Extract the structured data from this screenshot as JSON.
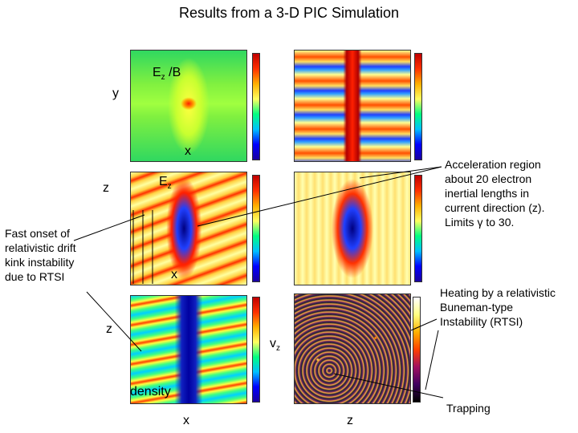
{
  "title": "Results from a 3-D PIC Simulation",
  "labels": {
    "ez_over_b": "E",
    "ez_over_b_sub": "z",
    "ez_over_b_tail": " /B",
    "y_axis": "y",
    "x_axis_top": "x",
    "z_axis_mid": "z",
    "ez": "E",
    "ez_sub": "z",
    "x_axis_mid": "x",
    "z_axis_bottom": "z",
    "vz": "v",
    "vz_sub": "z",
    "density": "density",
    "x_axis_bottom": "x",
    "z_axis_bottom_right": "z"
  },
  "notes": {
    "acceleration": [
      "Acceleration region",
      "about 20 electron",
      "inertial lengths in",
      "current direction (z).",
      "Limits γ to 30."
    ],
    "fast_onset": [
      "Fast onset of",
      "relativistic drift",
      "kink instability",
      "due to RTSI"
    ],
    "heating": [
      "Heating by a relativistic",
      "Buneman-type",
      "Instability (RTSI)"
    ],
    "trapping": "Trapping"
  },
  "colors": {
    "annotation_line": "#000000",
    "colorbar": [
      "#1a00a0",
      "#0000ff",
      "#00c0ff",
      "#00ff80",
      "#c8ff00",
      "#ffff60",
      "#ffb000",
      "#ff3000",
      "#c00000"
    ]
  }
}
